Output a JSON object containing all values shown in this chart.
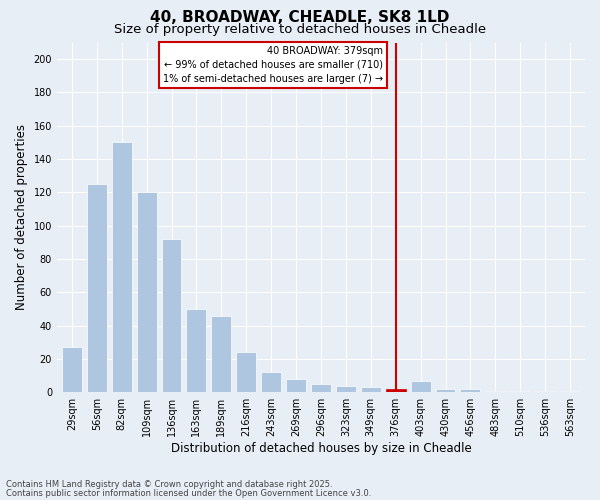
{
  "title1": "40, BROADWAY, CHEADLE, SK8 1LD",
  "title2": "Size of property relative to detached houses in Cheadle",
  "xlabel": "Distribution of detached houses by size in Cheadle",
  "ylabel": "Number of detached properties",
  "categories": [
    "29sqm",
    "56sqm",
    "82sqm",
    "109sqm",
    "136sqm",
    "163sqm",
    "189sqm",
    "216sqm",
    "243sqm",
    "269sqm",
    "296sqm",
    "323sqm",
    "349sqm",
    "376sqm",
    "403sqm",
    "430sqm",
    "456sqm",
    "483sqm",
    "510sqm",
    "536sqm",
    "563sqm"
  ],
  "values": [
    27,
    125,
    150,
    120,
    92,
    50,
    46,
    24,
    12,
    8,
    5,
    4,
    3,
    2,
    7,
    2,
    2,
    1,
    1,
    1,
    1
  ],
  "bar_color": "#aec6df",
  "highlight_bar_index": 13,
  "highlight_line_color": "#cc0000",
  "annotation_title": "40 BROADWAY: 379sqm",
  "annotation_line1": "← 99% of detached houses are smaller (710)",
  "annotation_line2": "1% of semi-detached houses are larger (7) →",
  "annotation_box_color": "#cc0000",
  "ylim": [
    0,
    210
  ],
  "yticks": [
    0,
    20,
    40,
    60,
    80,
    100,
    120,
    140,
    160,
    180,
    200
  ],
  "footer1": "Contains HM Land Registry data © Crown copyright and database right 2025.",
  "footer2": "Contains public sector information licensed under the Open Government Licence v3.0.",
  "background_color": "#e8eef5",
  "title_fontsize": 11,
  "subtitle_fontsize": 9.5,
  "tick_fontsize": 7,
  "label_fontsize": 8.5,
  "footer_fontsize": 6,
  "annotation_fontsize": 7
}
